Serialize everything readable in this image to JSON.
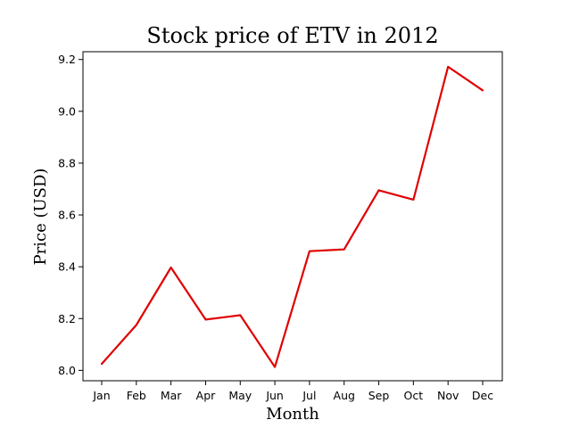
{
  "chart_data": {
    "type": "line",
    "title": "Stock price of ETV in 2012",
    "xlabel": "Month",
    "ylabel": "Price (USD)",
    "categories": [
      "Jan",
      "Feb",
      "Mar",
      "Apr",
      "May",
      "Jun",
      "Jul",
      "Aug",
      "Sep",
      "Oct",
      "Nov",
      "Dec"
    ],
    "series": [
      {
        "values": [
          8.025,
          8.175,
          8.397,
          8.196,
          8.213,
          8.013,
          8.46,
          8.467,
          8.695,
          8.659,
          9.172,
          9.081
        ],
        "color": "#e00000"
      }
    ],
    "yticks": [
      "8.0",
      "8.2",
      "8.4",
      "8.6",
      "8.8",
      "9.0",
      "9.2"
    ],
    "ylim": [
      7.96,
      9.23
    ],
    "grid": false,
    "legend": "none"
  }
}
